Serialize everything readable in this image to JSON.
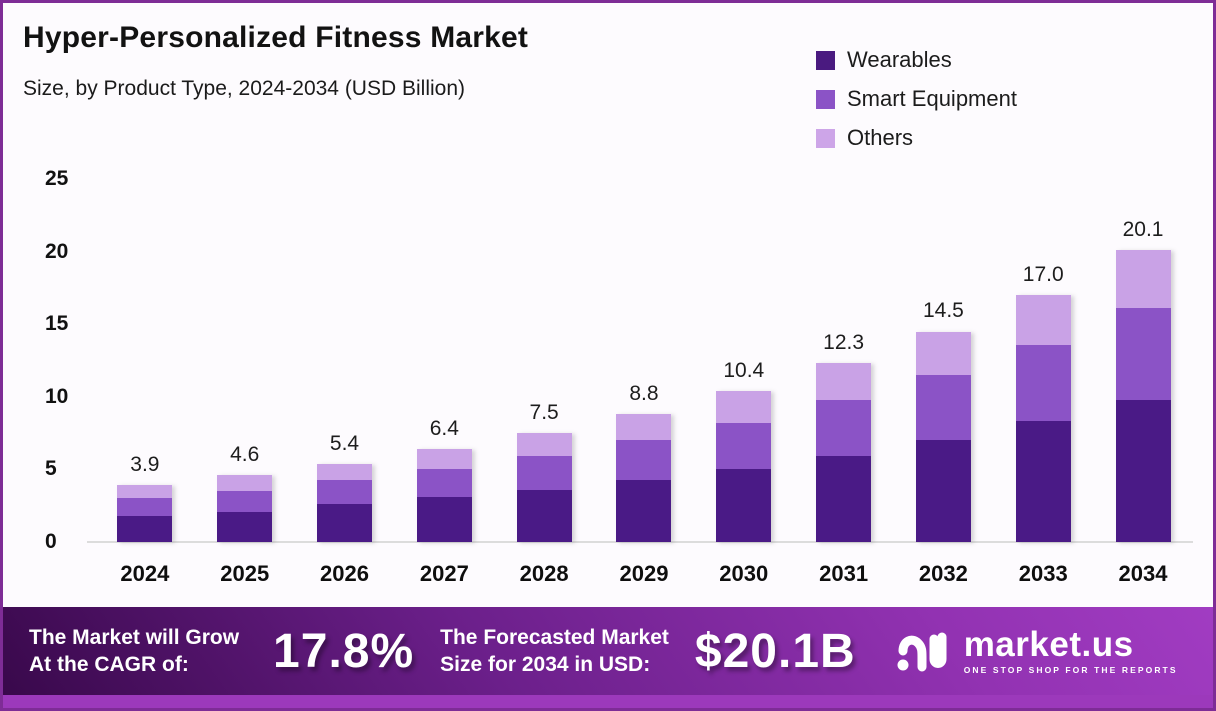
{
  "header": {
    "title": "Hyper-Personalized Fitness Market",
    "subtitle": "Size, by Product Type, 2024-2034 (USD Billion)"
  },
  "legend": [
    {
      "label": "Wearables",
      "color": "#4a1a80"
    },
    {
      "label": "Smart Equipment",
      "color": "#8b53c6"
    },
    {
      "label": "Others",
      "color": "#cda5e8"
    }
  ],
  "chart_data": {
    "type": "bar",
    "stacked": true,
    "title": "Hyper-Personalized Fitness Market",
    "subtitle": "Size, by Product Type, 2024-2034 (USD Billion)",
    "xlabel": "",
    "ylabel": "",
    "ylim": [
      0,
      25
    ],
    "y_ticks": [
      0,
      5,
      10,
      15,
      20,
      25
    ],
    "grid": false,
    "legend_position": "top-right",
    "categories": [
      "2024",
      "2025",
      "2026",
      "2027",
      "2028",
      "2029",
      "2030",
      "2031",
      "2032",
      "2033",
      "2034"
    ],
    "series": [
      {
        "name": "Wearables",
        "color": "#4a1a86",
        "values": [
          1.8,
          2.1,
          2.6,
          3.1,
          3.6,
          4.3,
          5.0,
          5.9,
          7.0,
          8.3,
          9.8
        ]
      },
      {
        "name": "Smart Equipment",
        "color": "#8b53c6",
        "values": [
          1.2,
          1.4,
          1.7,
          1.9,
          2.3,
          2.7,
          3.2,
          3.9,
          4.5,
          5.3,
          6.3
        ]
      },
      {
        "name": "Others",
        "color": "#c9a2e6",
        "values": [
          0.9,
          1.1,
          1.1,
          1.4,
          1.6,
          1.8,
          2.2,
          2.5,
          3.0,
          3.4,
          4.0
        ]
      }
    ],
    "totals": [
      "3.9",
      "4.6",
      "5.4",
      "6.4",
      "7.5",
      "8.8",
      "10.4",
      "12.3",
      "14.5",
      "17.0",
      "20.1"
    ]
  },
  "banner": {
    "cagr_label_line1": "The Market will Grow",
    "cagr_label_line2": "At the CAGR of:",
    "cagr_value": "17.8%",
    "forecast_label_line1": "The Forecasted Market",
    "forecast_label_line2": "Size for 2034 in USD:",
    "forecast_value": "$20.1B",
    "logo_name": "market.us",
    "logo_tagline": "ONE STOP SHOP FOR THE REPORTS"
  }
}
